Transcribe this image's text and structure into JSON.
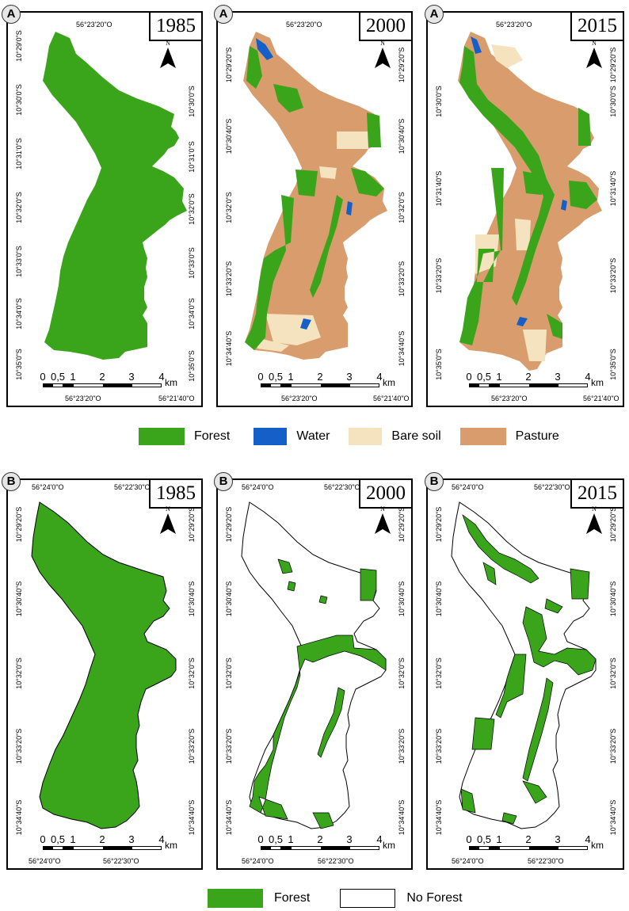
{
  "years": [
    "1985",
    "2000",
    "2015"
  ],
  "panel_letters": {
    "A": "A",
    "B": "B"
  },
  "north_label": "N",
  "scale": {
    "labels": [
      "0",
      "0,5",
      "1",
      "2",
      "3",
      "4"
    ],
    "unit": "km"
  },
  "rowA": {
    "top_coord": "56°23'20\"O",
    "bottom_coords": [
      "56°23'20\"O",
      "56°21'40\"O"
    ],
    "lat_1985": [
      "10°29'0\"S",
      "10°30'0\"S",
      "10°31'0\"S",
      "10°32'0\"S",
      "10°33'0\"S",
      "10°34'0\"S",
      "10°35'0\"S"
    ],
    "lat_2000": [
      "10°29'20\"S",
      "10°30'40\"S",
      "10°32'0\"S",
      "10°33'20\"S",
      "10°34'40\"S"
    ],
    "lat_2015_left": [
      "10°30'0\"S",
      "10°31'40\"S",
      "10°33'20\"S",
      "10°35'0\"S"
    ],
    "lat_2015_right": [
      "10°29'20\"S",
      "10°30'0\"S",
      "10°31'40\"S",
      "10°33'20\"S",
      "10°35'0\"S"
    ]
  },
  "rowB": {
    "top_coords": [
      "56°24'0\"O",
      "56°22'30\"O"
    ],
    "bottom_coords": [
      "56°24'0\"O",
      "56°22'30\"O"
    ],
    "lat": [
      "10°29'20\"S",
      "10°30'40\"S",
      "10°32'0\"S",
      "10°33'20\"S",
      "10°34'40\"S"
    ]
  },
  "legend_A": [
    {
      "label": "Forest",
      "color": "#3aa41a"
    },
    {
      "label": "Water",
      "color": "#1560c8"
    },
    {
      "label": "Bare soil",
      "color": "#f5e3c0"
    },
    {
      "label": "Pasture",
      "color": "#d99c6c"
    }
  ],
  "legend_B": [
    {
      "label": "Forest",
      "color": "#3aa41a"
    },
    {
      "label": "No Forest",
      "color": "#ffffff"
    }
  ]
}
